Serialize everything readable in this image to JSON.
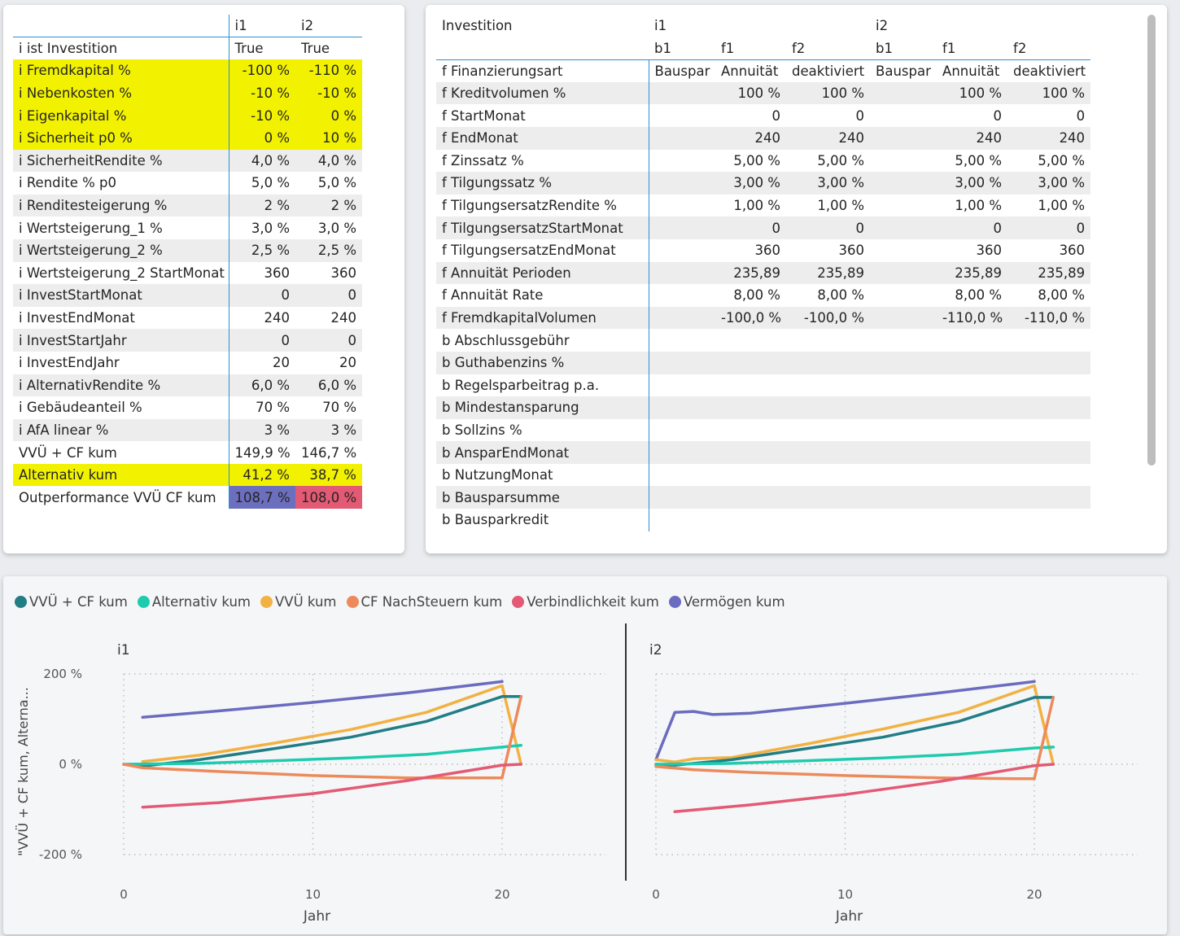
{
  "left_matrix": {
    "columns": [
      "i1",
      "i2"
    ],
    "rows": [
      {
        "label": "i ist Investition",
        "v1": "True",
        "v2": "True",
        "align": "left",
        "style": "plain"
      },
      {
        "label": "i Fremdkapital %",
        "v1": "-100 %",
        "v2": "-110 %",
        "style": "yellow"
      },
      {
        "label": "i Nebenkosten %",
        "v1": "-10 %",
        "v2": "-10 %",
        "style": "yellow"
      },
      {
        "label": "i Eigenkapital %",
        "v1": "-10 %",
        "v2": "0 %",
        "style": "yellow"
      },
      {
        "label": "i Sicherheit p0 %",
        "v1": "0 %",
        "v2": "10 %",
        "style": "yellow"
      },
      {
        "label": "i SicherheitRendite %",
        "v1": "4,0 %",
        "v2": "4,0 %",
        "style": "band"
      },
      {
        "label": "i Rendite % p0",
        "v1": "5,0 %",
        "v2": "5,0 %",
        "style": "plain"
      },
      {
        "label": "i Renditesteigerung %",
        "v1": "2 %",
        "v2": "2 %",
        "style": "band"
      },
      {
        "label": "i Wertsteigerung_1 %",
        "v1": "3,0 %",
        "v2": "3,0 %",
        "style": "plain"
      },
      {
        "label": "i Wertsteigerung_2 %",
        "v1": "2,5 %",
        "v2": "2,5 %",
        "style": "band"
      },
      {
        "label": "i Wertsteigerung_2 StartMonat",
        "v1": "360",
        "v2": "360",
        "style": "plain"
      },
      {
        "label": "i InvestStartMonat",
        "v1": "0",
        "v2": "0",
        "style": "band"
      },
      {
        "label": "i InvestEndMonat",
        "v1": "240",
        "v2": "240",
        "style": "plain"
      },
      {
        "label": "i InvestStartJahr",
        "v1": "0",
        "v2": "0",
        "style": "band"
      },
      {
        "label": "i InvestEndJahr",
        "v1": "20",
        "v2": "20",
        "style": "plain"
      },
      {
        "label": "i AlternativRendite %",
        "v1": "6,0 %",
        "v2": "6,0 %",
        "style": "band"
      },
      {
        "label": "i Gebäudeanteil %",
        "v1": "70 %",
        "v2": "70 %",
        "style": "plain"
      },
      {
        "label": "i AfA linear %",
        "v1": "3 %",
        "v2": "3 %",
        "style": "band"
      },
      {
        "label": "VVÜ + CF kum",
        "v1": "149,9 %",
        "v2": "146,7 %",
        "style": "plain"
      },
      {
        "label": "Alternativ kum",
        "v1": "41,2 %",
        "v2": "38,7 %",
        "style": "yellow"
      },
      {
        "label": "Outperformance VVÜ CF kum",
        "v1": "108,7 %",
        "v2": "108,0 %",
        "style": "plain",
        "c1": "#6b6fbe",
        "c2": "#e35a74"
      }
    ]
  },
  "right_matrix": {
    "corner": "Investition",
    "groups": [
      "i1",
      "i2"
    ],
    "subcols": [
      "b1",
      "f1",
      "f2",
      "b1",
      "f1",
      "f2"
    ],
    "rows": [
      {
        "label": "f Finanzierungsart",
        "vals": [
          "Bauspar",
          "Annuität",
          "deaktiviert",
          "Bauspar",
          "Annuität",
          "deaktiviert"
        ]
      },
      {
        "label": "f Kreditvolumen %",
        "vals": [
          "",
          "100 %",
          "100 %",
          "",
          "100 %",
          "100 %"
        ]
      },
      {
        "label": "f StartMonat",
        "vals": [
          "",
          "0",
          "0",
          "",
          "0",
          "0"
        ]
      },
      {
        "label": "f EndMonat",
        "vals": [
          "",
          "240",
          "240",
          "",
          "240",
          "240"
        ]
      },
      {
        "label": "f Zinssatz %",
        "vals": [
          "",
          "5,00 %",
          "5,00 %",
          "",
          "5,00 %",
          "5,00 %"
        ]
      },
      {
        "label": "f Tilgungssatz %",
        "vals": [
          "",
          "3,00 %",
          "3,00 %",
          "",
          "3,00 %",
          "3,00 %"
        ]
      },
      {
        "label": "f TilgungsersatzRendite %",
        "vals": [
          "",
          "1,00 %",
          "1,00 %",
          "",
          "1,00 %",
          "1,00 %"
        ]
      },
      {
        "label": "f TilgungsersatzStartMonat",
        "vals": [
          "",
          "0",
          "0",
          "",
          "0",
          "0"
        ]
      },
      {
        "label": "f TilgungsersatzEndMonat",
        "vals": [
          "",
          "360",
          "360",
          "",
          "360",
          "360"
        ]
      },
      {
        "label": "f Annuität Perioden",
        "vals": [
          "",
          "235,89",
          "235,89",
          "",
          "235,89",
          "235,89"
        ]
      },
      {
        "label": "f Annuität Rate",
        "vals": [
          "",
          "8,00 %",
          "8,00 %",
          "",
          "8,00 %",
          "8,00 %"
        ]
      },
      {
        "label": "f FremdkapitalVolumen",
        "vals": [
          "",
          "-100,0 %",
          "-100,0 %",
          "",
          "-110,0 %",
          "-110,0 %"
        ]
      },
      {
        "label": "b Abschlussgebühr",
        "vals": [
          "",
          "",
          "",
          "",
          "",
          ""
        ]
      },
      {
        "label": "b Guthabenzins %",
        "vals": [
          "",
          "",
          "",
          "",
          "",
          ""
        ]
      },
      {
        "label": "b Regelsparbeitrag p.a.",
        "vals": [
          "",
          "",
          "",
          "",
          "",
          ""
        ]
      },
      {
        "label": "b Mindestansparung",
        "vals": [
          "",
          "",
          "",
          "",
          "",
          ""
        ]
      },
      {
        "label": "b Sollzins %",
        "vals": [
          "",
          "",
          "",
          "",
          "",
          ""
        ]
      },
      {
        "label": "b AnsparEndMonat",
        "vals": [
          "",
          "",
          "",
          "",
          "",
          ""
        ]
      },
      {
        "label": "b NutzungMonat",
        "vals": [
          "",
          "",
          "",
          "",
          "",
          ""
        ]
      },
      {
        "label": "b Bausparsumme",
        "vals": [
          "",
          "",
          "",
          "",
          "",
          ""
        ]
      },
      {
        "label": "b Bausparkredit",
        "vals": [
          "",
          "",
          "",
          "",
          "",
          ""
        ]
      }
    ]
  },
  "chart_data": {
    "type": "line",
    "ylabel": "\"VVÜ + CF kum, Alterna...",
    "xlabel": "Jahr",
    "yticks": [
      200,
      0,
      -200
    ],
    "ytick_labels": [
      "200 %",
      "0 %",
      "-200 %"
    ],
    "xticks": [
      0,
      10,
      20
    ],
    "ylim": [
      -200,
      200
    ],
    "xlim": [
      0,
      22
    ],
    "grid": true,
    "legend_position": "top-left",
    "legend": [
      {
        "name": "VVÜ + CF kum",
        "color": "#217e85"
      },
      {
        "name": "Alternativ kum",
        "color": "#1ecbae"
      },
      {
        "name": "VVÜ kum",
        "color": "#f2b143"
      },
      {
        "name": "CF NachSteuern kum",
        "color": "#ec8a5b"
      },
      {
        "name": "Verbindlichkeit kum",
        "color": "#e35a74"
      },
      {
        "name": "Vermögen kum",
        "color": "#6b6bbf"
      }
    ],
    "panels": [
      {
        "title": "i1",
        "series": [
          {
            "name": "Vermögen kum",
            "color": "#6b6bbf",
            "x": [
              1,
              5,
              10,
              15,
              20
            ],
            "y": [
              104,
              118,
              137,
              158,
              183
            ]
          },
          {
            "name": "VVÜ kum",
            "color": "#f2b143",
            "x": [
              1,
              4,
              8,
              12,
              16,
              20,
              21
            ],
            "y": [
              6,
              20,
              47,
              77,
              115,
              174,
              0
            ]
          },
          {
            "name": "VVÜ + CF kum",
            "color": "#217e85",
            "x": [
              0,
              1,
              4,
              8,
              12,
              16,
              20,
              21
            ],
            "y": [
              0,
              -4,
              10,
              35,
              60,
              95,
              150,
              150
            ]
          },
          {
            "name": "Alternativ kum",
            "color": "#1ecbae",
            "x": [
              0,
              4,
              8,
              12,
              16,
              20,
              21
            ],
            "y": [
              0,
              2,
              8,
              14,
              22,
              38,
              42
            ]
          },
          {
            "name": "CF NachSteuern kum",
            "color": "#ec8a5b",
            "x": [
              0,
              1,
              5,
              10,
              15,
              19,
              20,
              21
            ],
            "y": [
              0,
              -8,
              -16,
              -25,
              -30,
              -30,
              -30,
              150
            ]
          },
          {
            "name": "Verbindlichkeit kum",
            "color": "#e35a74",
            "x": [
              1,
              5,
              10,
              15,
              20,
              21
            ],
            "y": [
              -95,
              -85,
              -65,
              -36,
              -2,
              0
            ]
          }
        ]
      },
      {
        "title": "i2",
        "series": [
          {
            "name": "Vermögen kum",
            "color": "#6b6bbf",
            "x": [
              0,
              1,
              2,
              3,
              5,
              10,
              15,
              20
            ],
            "y": [
              10,
              115,
              117,
              110,
              113,
              135,
              158,
              183
            ]
          },
          {
            "name": "VVÜ kum",
            "color": "#f2b143",
            "x": [
              0,
              1,
              2,
              4,
              8,
              12,
              16,
              20,
              21
            ],
            "y": [
              10,
              5,
              12,
              15,
              45,
              78,
              115,
              174,
              0
            ]
          },
          {
            "name": "VVÜ + CF kum",
            "color": "#217e85",
            "x": [
              0,
              1,
              4,
              8,
              12,
              16,
              20,
              21
            ],
            "y": [
              0,
              -2,
              10,
              35,
              60,
              95,
              148,
              148
            ]
          },
          {
            "name": "Alternativ kum",
            "color": "#1ecbae",
            "x": [
              0,
              4,
              8,
              12,
              16,
              20,
              21
            ],
            "y": [
              0,
              2,
              8,
              14,
              22,
              36,
              38
            ]
          },
          {
            "name": "CF NachSteuern kum",
            "color": "#ec8a5b",
            "x": [
              0,
              2,
              5,
              10,
              15,
              19,
              20,
              21
            ],
            "y": [
              -5,
              -12,
              -18,
              -25,
              -30,
              -32,
              -32,
              148
            ]
          },
          {
            "name": "Verbindlichkeit kum",
            "color": "#e35a74",
            "x": [
              1,
              5,
              10,
              15,
              20,
              21
            ],
            "y": [
              -105,
              -90,
              -67,
              -38,
              -3,
              0
            ]
          }
        ]
      }
    ]
  }
}
